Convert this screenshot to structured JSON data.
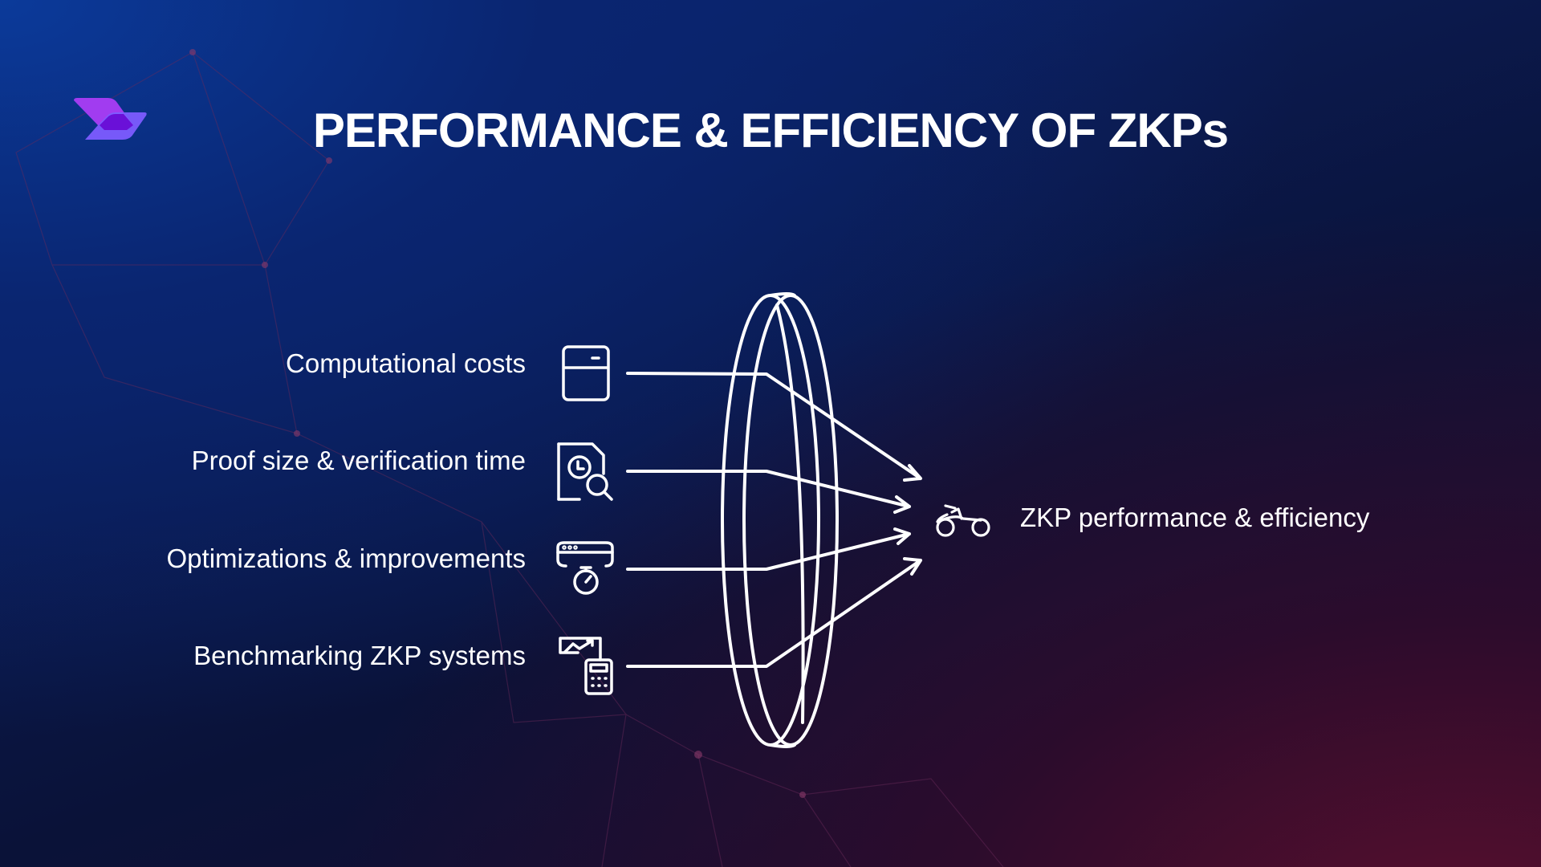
{
  "title": "PERFORMANCE & EFFICIENCY OF ZKPs",
  "inputs": [
    {
      "label": "Computational costs",
      "icon": "server-icon"
    },
    {
      "label": "Proof size & verification time",
      "icon": "document-clock-search-icon"
    },
    {
      "label": "Optimizations & improvements",
      "icon": "browser-stopwatch-icon"
    },
    {
      "label": "Benchmarking ZKP systems",
      "icon": "chart-calculator-icon"
    }
  ],
  "output": {
    "label": "ZKP performance & efficiency",
    "icon": "bicycle-icon"
  },
  "colors": {
    "logo_top": "#a13cf0",
    "logo_bottom": "#7d5cff",
    "logo_overlap": "#6a10d8",
    "text": "#ffffff"
  }
}
